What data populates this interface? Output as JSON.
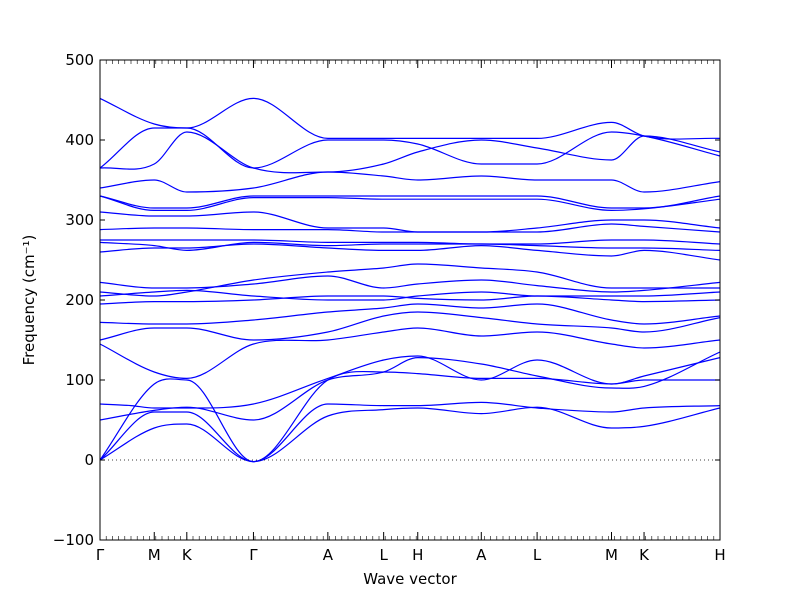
{
  "chart_data": {
    "type": "line",
    "title": "",
    "xlabel": "Wave vector",
    "ylabel": "Frequency (cm⁻¹)",
    "ylim": [
      -100,
      500
    ],
    "yticks": [
      -100,
      0,
      100,
      200,
      300,
      400,
      500
    ],
    "grid": false,
    "legend": "none",
    "line_color": "#0000ff",
    "zero_line": {
      "y": 0,
      "style": "dotted"
    },
    "x_range": [
      0,
      400
    ],
    "high_symmetry_points": [
      {
        "label": "Γ",
        "x": 0
      },
      {
        "label": "M",
        "x": 35
      },
      {
        "label": "K",
        "x": 56
      },
      {
        "label": "Γ",
        "x": 99
      },
      {
        "label": "A",
        "x": 147
      },
      {
        "label": "L",
        "x": 183
      },
      {
        "label": "H",
        "x": 205
      },
      {
        "label": "A",
        "x": 246
      },
      {
        "label": "L",
        "x": 282
      },
      {
        "label": "M",
        "x": 330
      },
      {
        "label": "K",
        "x": 351
      },
      {
        "label": "H",
        "x": 400
      }
    ],
    "series": [
      {
        "x": [
          0,
          35,
          56,
          99,
          147,
          183,
          205,
          246,
          282,
          330,
          351,
          400
        ],
        "values": [
          0,
          40,
          45,
          -2,
          55,
          63,
          65,
          58,
          66,
          40,
          42,
          65
        ]
      },
      {
        "x": [
          0,
          35,
          56,
          99,
          147,
          183,
          205,
          246,
          282,
          330,
          351,
          400
        ],
        "values": [
          0,
          60,
          60,
          -2,
          70,
          68,
          68,
          72,
          65,
          60,
          65,
          68
        ]
      },
      {
        "x": [
          0,
          35,
          56,
          99,
          147,
          183,
          205,
          246,
          282,
          330,
          351,
          400
        ],
        "values": [
          0,
          95,
          100,
          -2,
          100,
          110,
          108,
          102,
          102,
          95,
          100,
          100
        ]
      },
      {
        "x": [
          0,
          20,
          35,
          56,
          99,
          147,
          183,
          205,
          246,
          282,
          330,
          351,
          400
        ],
        "values": [
          70,
          68,
          65,
          65,
          70,
          102,
          125,
          130,
          100,
          125,
          95,
          105,
          128
        ]
      },
      {
        "x": [
          0,
          35,
          56,
          99,
          147,
          183,
          205,
          246,
          282,
          330,
          351,
          400
        ],
        "values": [
          50,
          62,
          66,
          50,
          100,
          110,
          128,
          120,
          105,
          90,
          92,
          135
        ]
      },
      {
        "x": [
          0,
          35,
          56,
          99,
          147,
          183,
          205,
          246,
          282,
          330,
          351,
          400
        ],
        "values": [
          145,
          110,
          102,
          145,
          150,
          160,
          165,
          155,
          160,
          145,
          140,
          150
        ]
      },
      {
        "x": [
          0,
          35,
          56,
          99,
          147,
          183,
          205,
          246,
          282,
          330,
          351,
          400
        ],
        "values": [
          150,
          165,
          165,
          150,
          160,
          180,
          185,
          178,
          170,
          165,
          160,
          178
        ]
      },
      {
        "x": [
          0,
          35,
          56,
          99,
          147,
          183,
          205,
          246,
          282,
          330,
          351,
          400
        ],
        "values": [
          172,
          170,
          170,
          175,
          185,
          190,
          195,
          190,
          195,
          175,
          170,
          180
        ]
      },
      {
        "x": [
          0,
          35,
          56,
          99,
          147,
          183,
          205,
          246,
          282,
          330,
          351,
          400
        ],
        "values": [
          195,
          198,
          198,
          200,
          205,
          205,
          202,
          200,
          205,
          200,
          198,
          200
        ]
      },
      {
        "x": [
          0,
          35,
          56,
          99,
          147,
          183,
          205,
          246,
          282,
          330,
          351,
          400
        ],
        "values": [
          205,
          210,
          212,
          205,
          200,
          200,
          205,
          210,
          205,
          205,
          205,
          210
        ]
      },
      {
        "x": [
          0,
          35,
          56,
          99,
          147,
          183,
          205,
          246,
          282,
          330,
          351,
          400
        ],
        "values": [
          222,
          215,
          215,
          220,
          230,
          215,
          220,
          225,
          218,
          210,
          212,
          222
        ]
      },
      {
        "x": [
          0,
          35,
          56,
          99,
          147,
          183,
          205,
          246,
          282,
          330,
          351,
          400
        ],
        "values": [
          210,
          205,
          210,
          225,
          235,
          240,
          245,
          240,
          235,
          215,
          215,
          215
        ]
      },
      {
        "x": [
          0,
          35,
          56,
          99,
          147,
          183,
          205,
          246,
          282,
          330,
          351,
          400
        ],
        "values": [
          260,
          265,
          265,
          270,
          265,
          262,
          262,
          268,
          262,
          255,
          262,
          250
        ]
      },
      {
        "x": [
          0,
          35,
          56,
          99,
          147,
          183,
          205,
          246,
          282,
          330,
          351,
          400
        ],
        "values": [
          272,
          268,
          262,
          272,
          268,
          270,
          270,
          270,
          268,
          265,
          265,
          262
        ]
      },
      {
        "x": [
          0,
          35,
          56,
          99,
          147,
          183,
          205,
          246,
          282,
          330,
          351,
          400
        ],
        "values": [
          275,
          275,
          275,
          275,
          272,
          272,
          272,
          270,
          270,
          275,
          275,
          270
        ]
      },
      {
        "x": [
          0,
          35,
          56,
          99,
          147,
          183,
          205,
          246,
          282,
          330,
          351,
          400
        ],
        "values": [
          288,
          290,
          290,
          288,
          288,
          285,
          285,
          285,
          285,
          295,
          292,
          285
        ]
      },
      {
        "x": [
          0,
          35,
          56,
          99,
          147,
          183,
          205,
          246,
          282,
          330,
          351,
          400
        ],
        "values": [
          310,
          305,
          305,
          310,
          290,
          290,
          285,
          285,
          290,
          300,
          300,
          290
        ]
      },
      {
        "x": [
          0,
          35,
          56,
          99,
          147,
          183,
          205,
          246,
          282,
          330,
          351,
          400
        ],
        "values": [
          330,
          312,
          312,
          328,
          328,
          326,
          326,
          326,
          326,
          312,
          314,
          326
        ]
      },
      {
        "x": [
          0,
          35,
          56,
          99,
          147,
          183,
          205,
          246,
          282,
          330,
          351,
          400
        ],
        "values": [
          330,
          315,
          315,
          330,
          330,
          330,
          330,
          330,
          330,
          315,
          315,
          330
        ]
      },
      {
        "x": [
          0,
          35,
          56,
          99,
          147,
          183,
          205,
          246,
          282,
          330,
          351,
          400
        ],
        "values": [
          340,
          350,
          335,
          340,
          360,
          355,
          350,
          355,
          350,
          350,
          335,
          348
        ]
      },
      {
        "x": [
          0,
          35,
          56,
          99,
          147,
          183,
          205,
          246,
          282,
          330,
          351,
          400
        ],
        "values": [
          365,
          370,
          410,
          365,
          360,
          370,
          385,
          400,
          390,
          375,
          405,
          385
        ]
      },
      {
        "x": [
          0,
          35,
          56,
          99,
          147,
          183,
          205,
          246,
          282,
          330,
          351,
          400
        ],
        "values": [
          365,
          415,
          415,
          365,
          400,
          400,
          395,
          370,
          370,
          410,
          405,
          380
        ]
      },
      {
        "x": [
          0,
          35,
          56,
          99,
          147,
          183,
          205,
          246,
          282,
          330,
          351,
          400
        ],
        "values": [
          452,
          420,
          415,
          452,
          402,
          402,
          402,
          402,
          402,
          422,
          405,
          402
        ]
      }
    ]
  }
}
